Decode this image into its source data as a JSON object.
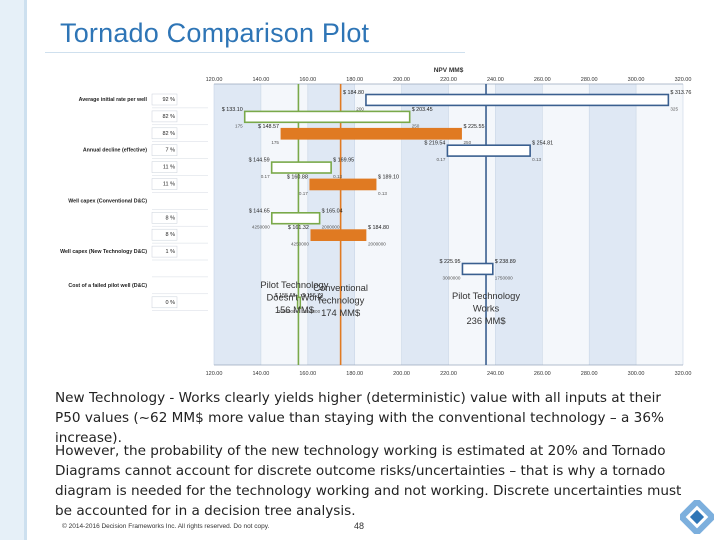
{
  "slide": {
    "title": "Tornado Comparison Plot",
    "paragraph1": "New Technology - Works clearly yields higher (deterministic) value with all inputs at their P50 values (~62 MM$ more value than staying with the conventional technology – a 36% increase).",
    "paragraph2": "However, the probability of the new technology working is estimated at 20% and Tornado Diagrams cannot account for discrete outcome risks/uncertainties – that is why a tornado diagram is needed for the technology working and not working. Discrete uncertainties must be accounted for in a decision tree analysis.",
    "footer": "© 2014-2016 Decision Frameworks Inc. All rights reserved. Do not copy.",
    "page_number": "48"
  },
  "chart_data": {
    "type": "tornado",
    "title": "NPV MM$",
    "xlim": [
      120,
      320
    ],
    "x_ticks": [
      "120.00",
      "140.00",
      "160.00",
      "180.00",
      "200.00",
      "220.00",
      "240.00",
      "260.00",
      "280.00",
      "300.00",
      "320.00"
    ],
    "rows": [
      {
        "label": "Average initial rate per well",
        "pct": "92 %"
      },
      {
        "label": "",
        "pct": "82 %"
      },
      {
        "label": "",
        "pct": "82 %"
      },
      {
        "label": "Annual decline (effective)",
        "pct": "7 %"
      },
      {
        "label": "",
        "pct": "11 %"
      },
      {
        "label": "",
        "pct": "11 %"
      },
      {
        "label": "Well capex (Conventional D&C)",
        "pct": ""
      },
      {
        "label": "",
        "pct": "8 %"
      },
      {
        "label": "",
        "pct": "8 %"
      },
      {
        "label": "Well capex (New Technology D&C)",
        "pct": "1 %"
      },
      {
        "label": "",
        "pct": ""
      },
      {
        "label": "Cost of a failed pilot well (D&C)",
        "pct": ""
      },
      {
        "label": "",
        "pct": "0 %"
      }
    ],
    "series": [
      {
        "name": "Pilot Technology Doesn't Work",
        "base": 156,
        "color": "#7aa94a",
        "bars": [
          {
            "row": 1,
            "low": 133.1,
            "high": 203.45,
            "low_label": "$ 133.10",
            "high_label": "$ 203.45",
            "low_input": "175",
            "high_input": "250"
          },
          {
            "row": 4,
            "low": 144.59,
            "high": 169.95,
            "low_label": "$ 144.59",
            "high_label": "$ 169.95",
            "low_input": "0.17",
            "high_input": "0.13"
          },
          {
            "row": 7,
            "low": 144.65,
            "high": 165.04,
            "low_label": "$ 144.65",
            "high_label": "$ 165.04",
            "low_input": "4250000",
            "high_input": "2000000"
          },
          {
            "row": 12,
            "low": 155.66,
            "high": 156.79,
            "low_label": "$ 155.66",
            "high_label": "$ 156.79",
            "low_input": "3000000",
            "high_input": "1250000"
          }
        ]
      },
      {
        "name": "Conventional Technology",
        "base": 174,
        "color": "#e07a22",
        "bars": [
          {
            "row": 2,
            "low": 148.57,
            "high": 225.55,
            "low_label": "$ 148.57",
            "high_label": "$ 225.55",
            "low_input": "175",
            "high_input": "250"
          },
          {
            "row": 5,
            "low": 160.88,
            "high": 189.1,
            "low_label": "$ 160.88",
            "high_label": "$ 189.10",
            "low_input": "0.17",
            "high_input": "0.13"
          },
          {
            "row": 8,
            "low": 161.32,
            "high": 184.8,
            "low_label": "$ 161.32",
            "high_label": "$ 184.80",
            "low_input": "4250000",
            "high_input": "2000000"
          }
        ]
      },
      {
        "name": "Pilot Technology Works",
        "base": 236,
        "color": "#3a5f8f",
        "bars": [
          {
            "row": 0,
            "low": 184.8,
            "high": 313.76,
            "low_label": "$ 184.80",
            "high_label": "$ 313.76",
            "low_input": "200",
            "high_input": "325"
          },
          {
            "row": 3,
            "low": 219.54,
            "high": 254.81,
            "low_label": "$ 219.54",
            "high_label": "$ 254.81",
            "low_input": "0.17",
            "high_input": "0.13"
          },
          {
            "row": 10,
            "low": 225.95,
            "high": 238.89,
            "low_label": "$ 225.95",
            "high_label": "$ 238.89",
            "low_input": "3000000",
            "high_input": "1750000"
          }
        ]
      }
    ],
    "annotations": [
      {
        "text": "Pilot Technology\nDoesn't Work\n156 MM$",
        "x": 156
      },
      {
        "text": "Conventional\nTechnology\n174 MM$",
        "x": 174
      },
      {
        "text": "Pilot Technology\nWorks\n236 MM$",
        "x": 236
      }
    ]
  }
}
